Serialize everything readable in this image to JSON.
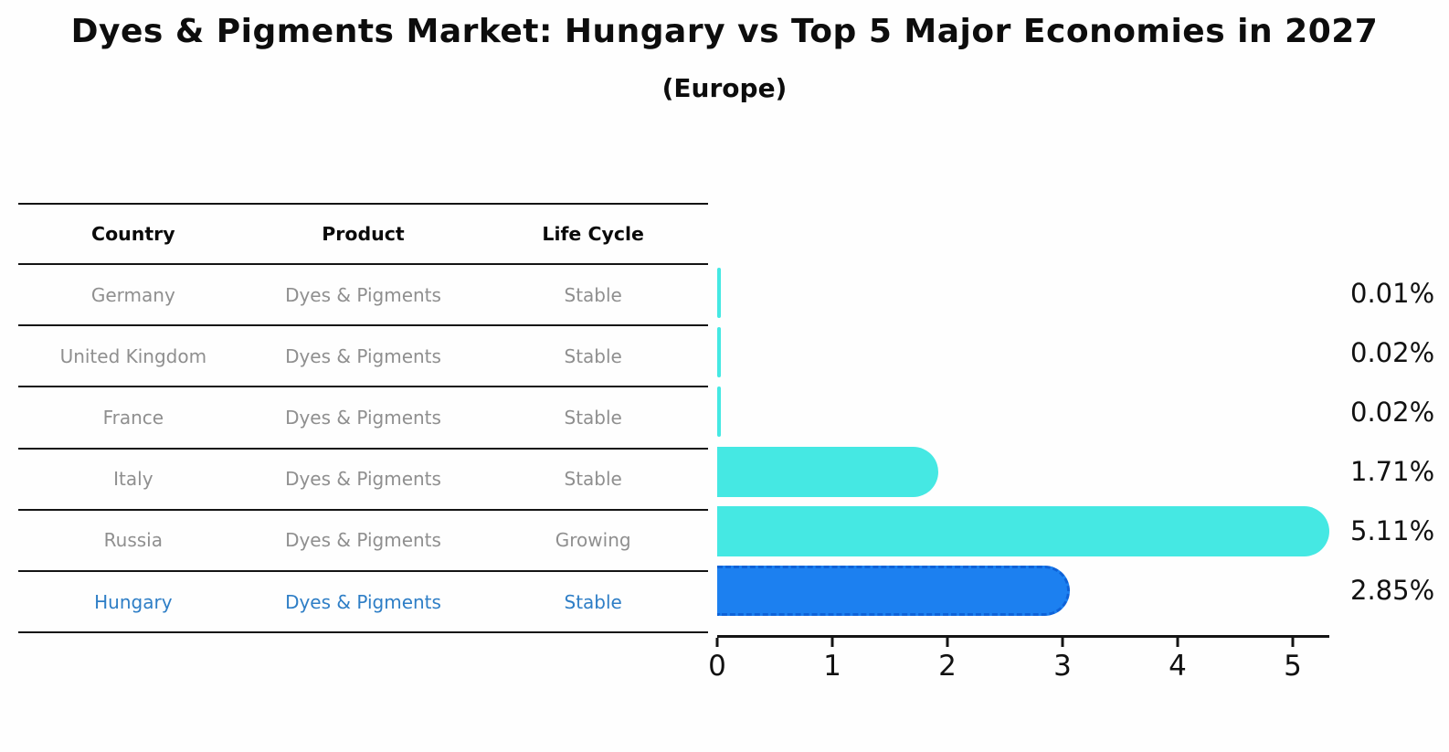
{
  "title": "Dyes & Pigments Market: Hungary vs Top 5 Major Economies in 2027",
  "subtitle": "(Europe)",
  "table": {
    "headers": [
      "Country",
      "Product",
      "Life Cycle"
    ],
    "rows": [
      {
        "country": "Germany",
        "product": "Dyes & Pigments",
        "life_cycle": "Stable",
        "highlight": false
      },
      {
        "country": "United Kingdom",
        "product": "Dyes & Pigments",
        "life_cycle": "Stable",
        "highlight": false
      },
      {
        "country": "France",
        "product": "Dyes & Pigments",
        "life_cycle": "Stable",
        "highlight": false
      },
      {
        "country": "Italy",
        "product": "Dyes & Pigments",
        "life_cycle": "Stable",
        "highlight": false
      },
      {
        "country": "Russia",
        "product": "Dyes & Pigments",
        "life_cycle": "Growing",
        "highlight": false
      },
      {
        "country": "Hungary",
        "product": "Dyes & Pigments",
        "life_cycle": "Stable",
        "highlight": true
      }
    ]
  },
  "chart_data": {
    "type": "bar",
    "orientation": "horizontal",
    "title": "Dyes & Pigments Market: Hungary vs Top 5 Major Economies in 2027",
    "subtitle": "(Europe)",
    "categories": [
      "Germany",
      "United Kingdom",
      "France",
      "Italy",
      "Russia",
      "Hungary"
    ],
    "values": [
      0.01,
      0.02,
      0.02,
      1.71,
      5.11,
      2.85
    ],
    "value_labels": [
      "0.01%",
      "0.02%",
      "0.02%",
      "1.71%",
      "5.11%",
      "2.85%"
    ],
    "x_ticks": [
      "0",
      "1",
      "2",
      "3",
      "4",
      "5"
    ],
    "xlim": [
      0,
      5.32
    ],
    "grid": false,
    "legend": "none",
    "highlight_index": 5,
    "colors": {
      "bar_default": "#45e8e3",
      "bar_highlight": "#1c80f0",
      "bar_highlight_border": "#0e62d8",
      "highlight_text": "#2e7ec6",
      "muted_text": "#8f8f8f",
      "axis_text": "#111111"
    }
  }
}
